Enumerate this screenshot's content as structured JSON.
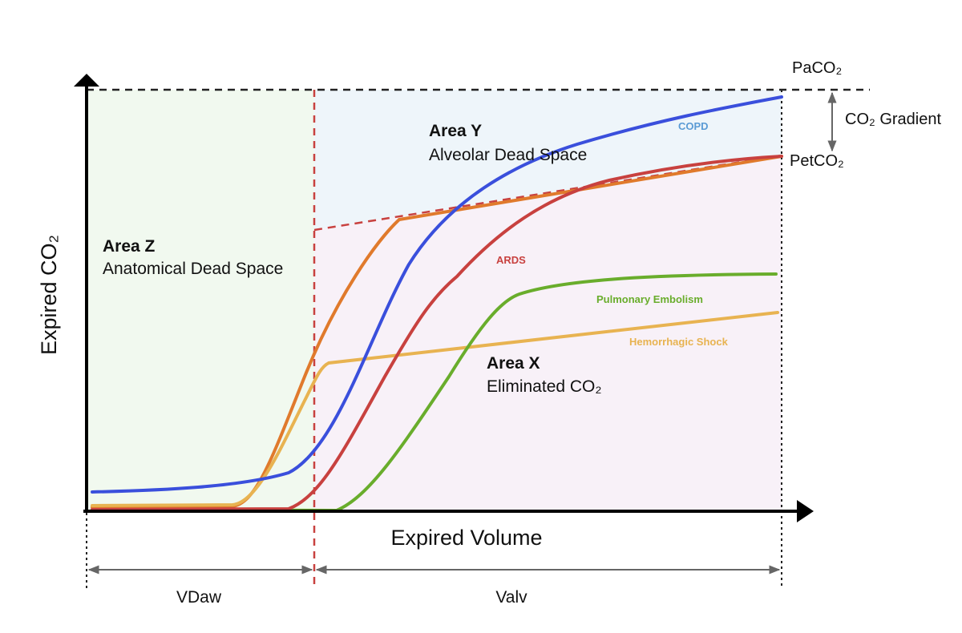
{
  "colors": {
    "copd": "#3a4fdc",
    "copd_label": "#5b9bd5",
    "ards": "#c8413f",
    "normal": "#e07a2c",
    "pulmonary_embolism": "#69ad2c",
    "hemorrhagic_shock": "#e8b351",
    "area_z_fill": "#f1f9ef",
    "area_y_fill": "#eef5fa",
    "area_x_fill": "#f8f1f8",
    "dead_space_line": "#c8413f"
  },
  "axes": {
    "y_label": "Expired CO₂",
    "x_label": "Expired Volume"
  },
  "levels": {
    "paco2": "PaCO₂",
    "petco2": "PetCO₂",
    "gradient": "CO₂ Gradient"
  },
  "areas": {
    "z": {
      "title": "Area Z",
      "subtitle": "Anatomical Dead Space"
    },
    "y": {
      "title": "Area Y",
      "subtitle": "Alveolar Dead Space"
    },
    "x": {
      "title": "Area X",
      "subtitle": "Eliminated CO₂"
    }
  },
  "curves": {
    "copd": "COPD",
    "ards": "ARDS",
    "pulmonary_embolism": "Pulmonary Embolism",
    "hemorrhagic_shock": "Hemorrhagic Shock"
  },
  "volumes": {
    "vdaw": "VDaw",
    "valv": "Valv"
  }
}
